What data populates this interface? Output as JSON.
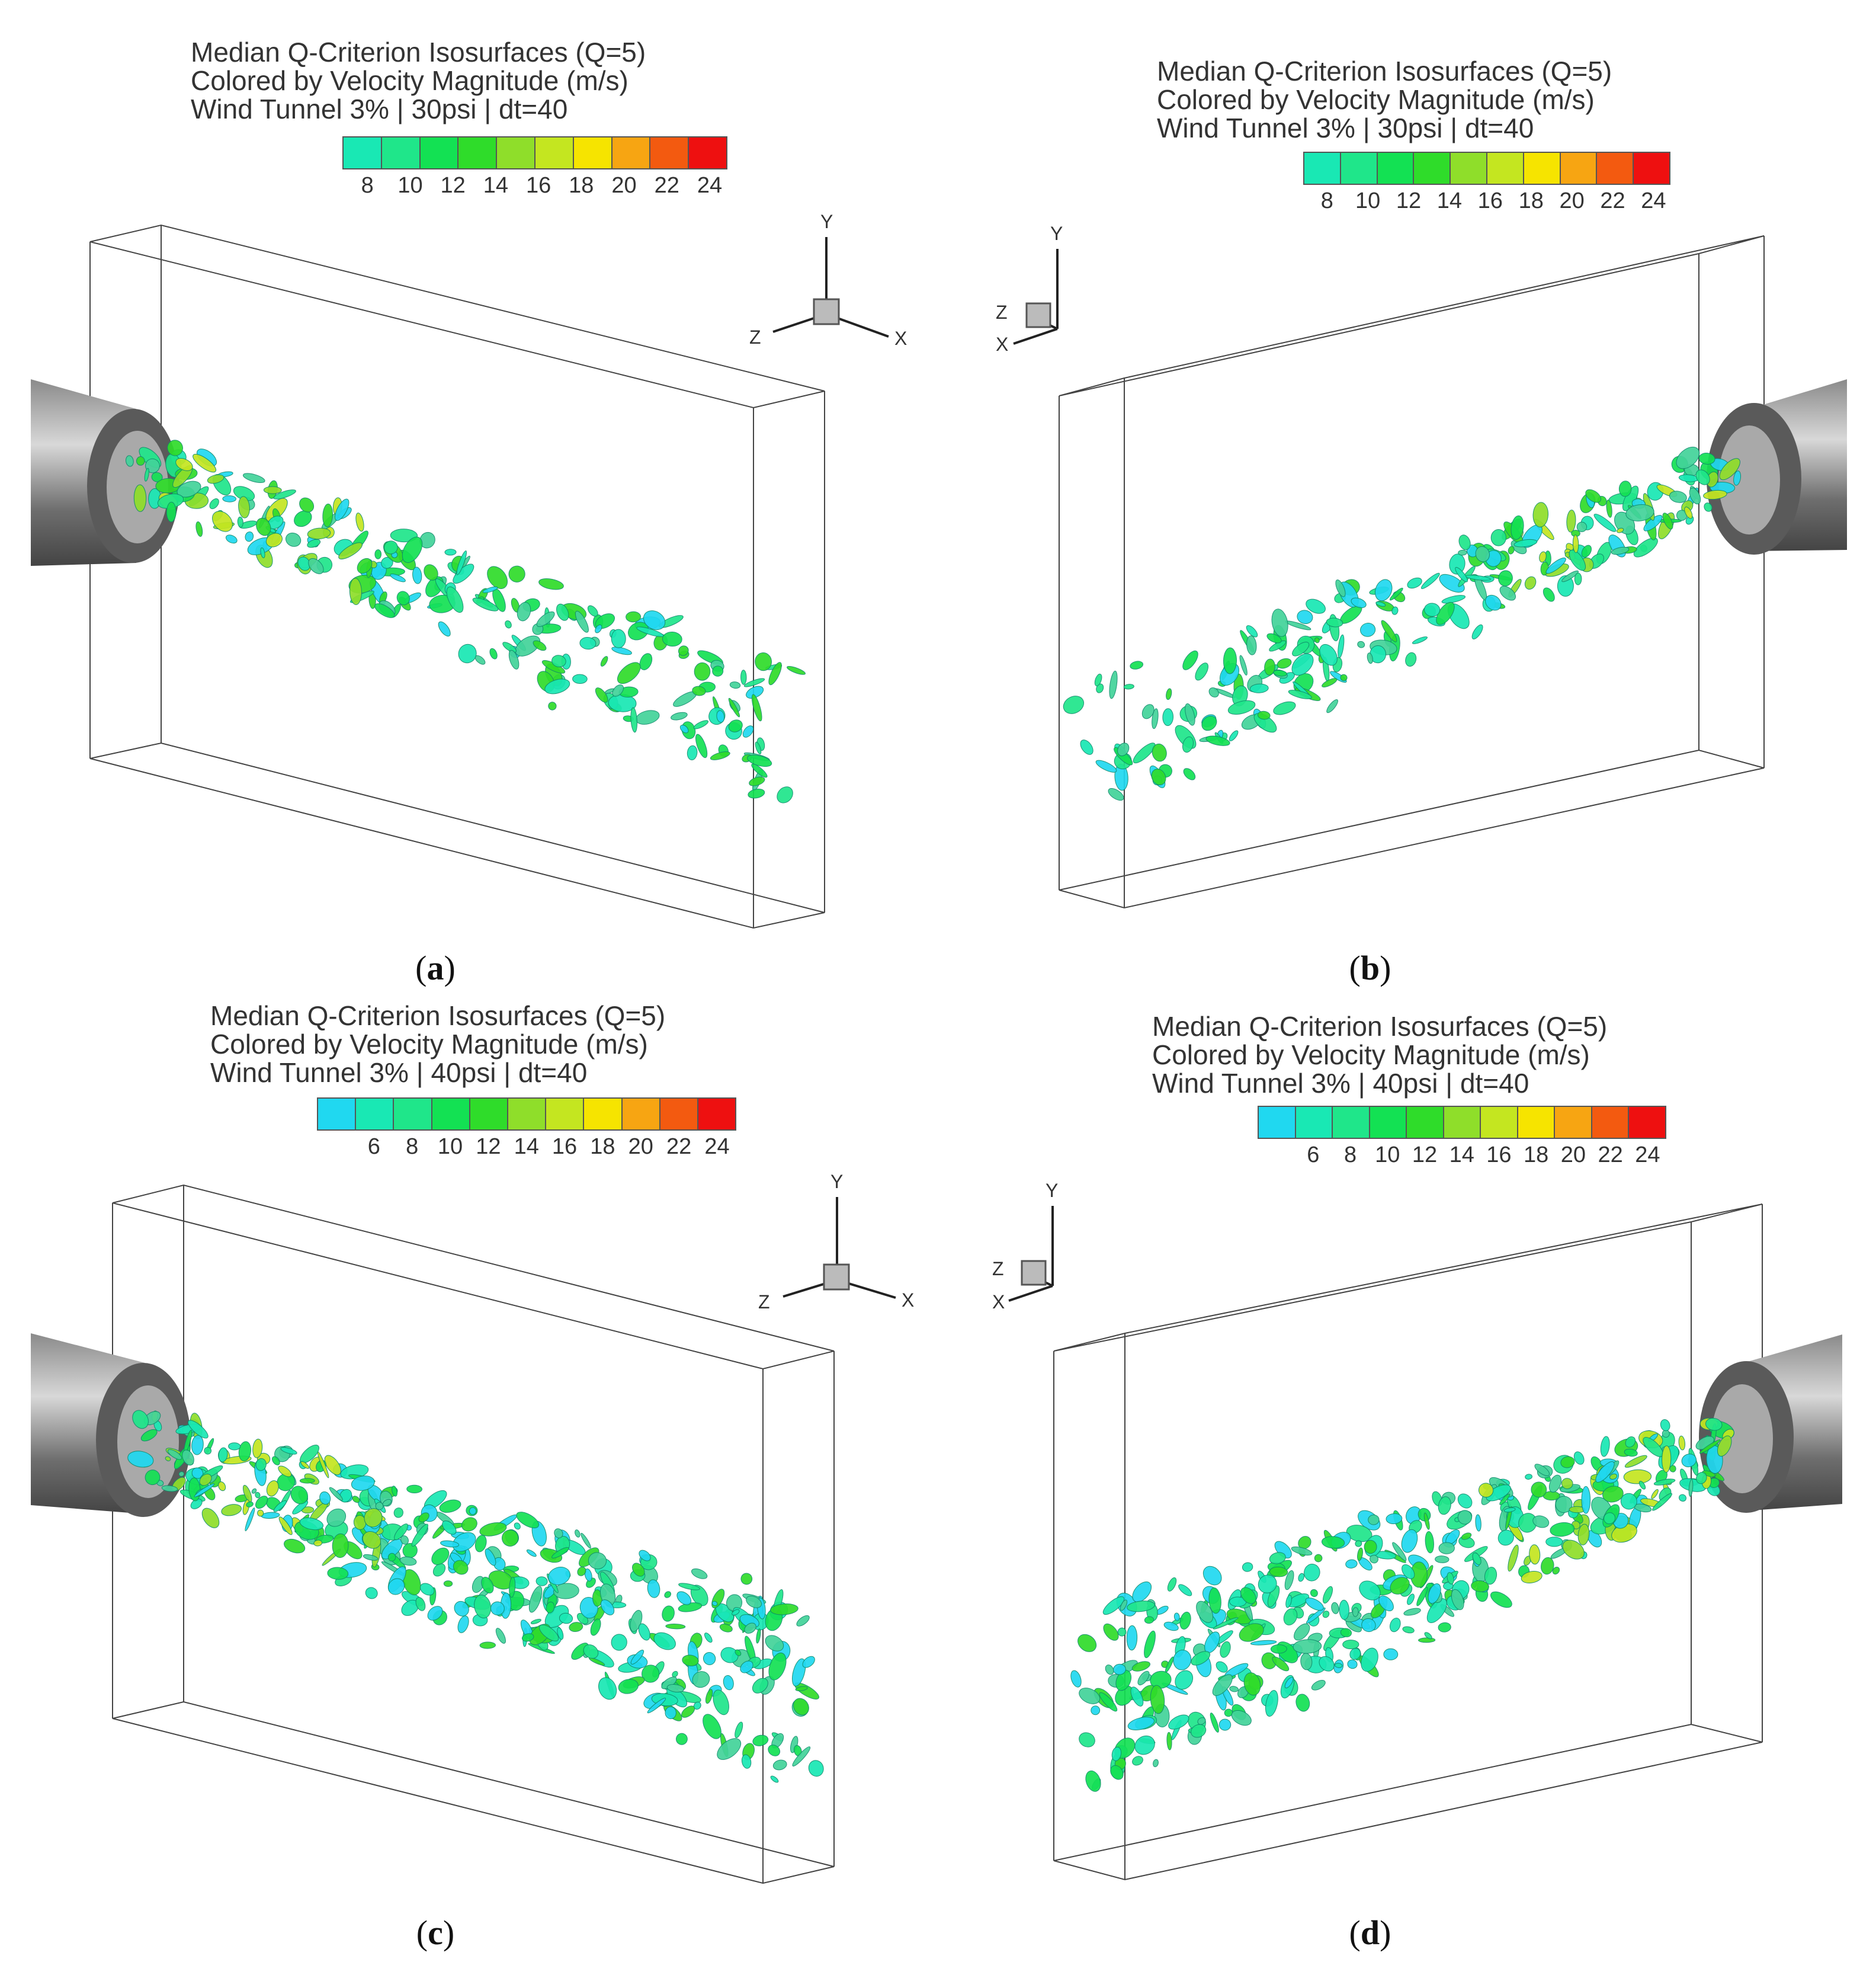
{
  "panels": [
    {
      "id": "a",
      "title_lines": [
        "Median Q-Criterion Isosurfaces (Q=5)",
        "Colored by Velocity Magnitude (m/s)",
        "Wind Tunnel 3% | 30psi | dt=40"
      ],
      "legend_colors": [
        "#19e8b4",
        "#1fe68a",
        "#13e153",
        "#2fdc2a",
        "#8fde2a",
        "#c4e620",
        "#f6e400",
        "#f7a512",
        "#f35a10",
        "#ee1010"
      ],
      "legend_ticks": [
        "8",
        "10",
        "12",
        "14",
        "16",
        "18",
        "20",
        "22",
        "24"
      ],
      "caption": "a",
      "axis_labels": {
        "y": "Y",
        "z": "Z",
        "x": "X"
      }
    },
    {
      "id": "b",
      "title_lines": [
        "Median Q-Criterion Isosurfaces (Q=5)",
        "Colored by Velocity Magnitude (m/s)",
        "Wind Tunnel 3% | 30psi | dt=40"
      ],
      "legend_colors": [
        "#19e8b4",
        "#1fe68a",
        "#13e153",
        "#2fdc2a",
        "#8fde2a",
        "#c4e620",
        "#f6e400",
        "#f7a512",
        "#f35a10",
        "#ee1010"
      ],
      "legend_ticks": [
        "8",
        "10",
        "12",
        "14",
        "16",
        "18",
        "20",
        "22",
        "24"
      ],
      "caption": "b",
      "axis_labels": {
        "y": "Y",
        "z": "Z",
        "x": "X"
      }
    },
    {
      "id": "c",
      "title_lines": [
        "Median Q-Criterion Isosurfaces (Q=5)",
        "Colored by Velocity Magnitude (m/s)",
        "Wind Tunnel 3% | 40psi | dt=40"
      ],
      "legend_colors": [
        "#20d8f0",
        "#19e8b4",
        "#1fe68a",
        "#13e153",
        "#2fdc2a",
        "#8fde2a",
        "#c4e620",
        "#f6e400",
        "#f7a512",
        "#f35a10",
        "#ee1010"
      ],
      "legend_ticks": [
        "6",
        "8",
        "10",
        "12",
        "14",
        "16",
        "18",
        "20",
        "22",
        "24"
      ],
      "caption": "c",
      "axis_labels": {
        "y": "Y",
        "z": "Z",
        "x": "X"
      }
    },
    {
      "id": "d",
      "title_lines": [
        "Median Q-Criterion Isosurfaces (Q=5)",
        "Colored by Velocity Magnitude (m/s)",
        "Wind Tunnel 3% | 40psi | dt=40"
      ],
      "legend_colors": [
        "#20d8f0",
        "#19e8b4",
        "#1fe68a",
        "#13e153",
        "#2fdc2a",
        "#8fde2a",
        "#c4e620",
        "#f6e400",
        "#f7a512",
        "#f35a10",
        "#ee1010"
      ],
      "legend_ticks": [
        "6",
        "8",
        "10",
        "12",
        "14",
        "16",
        "18",
        "20",
        "22",
        "24"
      ],
      "caption": "d",
      "axis_labels": {
        "y": "Y",
        "z": "Z",
        "x": "X"
      }
    }
  ],
  "blob_palette": [
    "#19e8b4",
    "#1fe68a",
    "#13e153",
    "#2fdc2a",
    "#43d39a",
    "#20d8f0",
    "#8fde2a",
    "#c4e620"
  ]
}
